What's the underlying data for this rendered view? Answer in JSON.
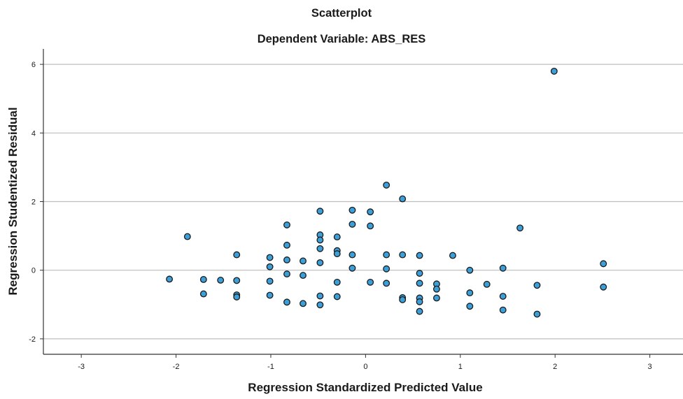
{
  "chart_data": {
    "type": "scatter",
    "title": "Scatterplot",
    "subtitle": "Dependent Variable: ABS_RES",
    "xlabel": "Regression Standardized Predicted Value",
    "ylabel": "Regression Studentized Residual",
    "xlim": [
      -3.4,
      3.35
    ],
    "ylim": [
      -2.45,
      6.45
    ],
    "xticks": [
      -3,
      -2,
      -1,
      0,
      1,
      2,
      3
    ],
    "yticks": [
      -2,
      0,
      2,
      4,
      6
    ],
    "grid": "horizontal",
    "colors": {
      "point_fill": "#3d9fd8",
      "point_stroke": "#1a1a1a",
      "grid": "#bdbdbd",
      "axis": "#333333",
      "text": "#1a1a1a"
    },
    "points": [
      {
        "x": 1.99,
        "y": 5.8
      },
      {
        "x": 0.22,
        "y": 2.48
      },
      {
        "x": 0.39,
        "y": 2.08
      },
      {
        "x": -0.48,
        "y": 1.72
      },
      {
        "x": -0.14,
        "y": 1.75
      },
      {
        "x": 0.05,
        "y": 1.7
      },
      {
        "x": -0.83,
        "y": 1.32
      },
      {
        "x": -0.14,
        "y": 1.34
      },
      {
        "x": 0.05,
        "y": 1.29
      },
      {
        "x": 1.63,
        "y": 1.23
      },
      {
        "x": -1.88,
        "y": 0.98
      },
      {
        "x": -0.48,
        "y": 1.03
      },
      {
        "x": -0.3,
        "y": 0.97
      },
      {
        "x": -0.48,
        "y": 0.88
      },
      {
        "x": -0.83,
        "y": 0.73
      },
      {
        "x": -0.48,
        "y": 0.63
      },
      {
        "x": -0.3,
        "y": 0.57
      },
      {
        "x": -0.3,
        "y": 0.48
      },
      {
        "x": -1.36,
        "y": 0.45
      },
      {
        "x": -0.14,
        "y": 0.45
      },
      {
        "x": 0.22,
        "y": 0.45
      },
      {
        "x": 0.39,
        "y": 0.45
      },
      {
        "x": 0.57,
        "y": 0.43
      },
      {
        "x": 0.92,
        "y": 0.43
      },
      {
        "x": -1.01,
        "y": 0.37
      },
      {
        "x": -0.83,
        "y": 0.3
      },
      {
        "x": -0.66,
        "y": 0.27
      },
      {
        "x": -0.48,
        "y": 0.22
      },
      {
        "x": 2.51,
        "y": 0.19
      },
      {
        "x": -1.01,
        "y": 0.1
      },
      {
        "x": -0.14,
        "y": 0.06
      },
      {
        "x": 0.22,
        "y": 0.04
      },
      {
        "x": 1.45,
        "y": 0.06
      },
      {
        "x": 1.1,
        "y": 0.0
      },
      {
        "x": -0.83,
        "y": -0.11
      },
      {
        "x": -0.66,
        "y": -0.15
      },
      {
        "x": 0.57,
        "y": -0.09
      },
      {
        "x": -2.07,
        "y": -0.26
      },
      {
        "x": -1.71,
        "y": -0.27
      },
      {
        "x": -1.53,
        "y": -0.29
      },
      {
        "x": -1.36,
        "y": -0.3
      },
      {
        "x": -1.01,
        "y": -0.32
      },
      {
        "x": -0.3,
        "y": -0.35
      },
      {
        "x": 0.05,
        "y": -0.35
      },
      {
        "x": 0.22,
        "y": -0.38
      },
      {
        "x": 0.57,
        "y": -0.38
      },
      {
        "x": 0.75,
        "y": -0.4
      },
      {
        "x": 1.28,
        "y": -0.41
      },
      {
        "x": 1.81,
        "y": -0.44
      },
      {
        "x": 2.51,
        "y": -0.49
      },
      {
        "x": 0.75,
        "y": -0.55
      },
      {
        "x": 1.1,
        "y": -0.66
      },
      {
        "x": -1.71,
        "y": -0.69
      },
      {
        "x": -1.36,
        "y": -0.72
      },
      {
        "x": -1.01,
        "y": -0.73
      },
      {
        "x": -0.48,
        "y": -0.75
      },
      {
        "x": -0.3,
        "y": -0.77
      },
      {
        "x": 1.45,
        "y": -0.76
      },
      {
        "x": -1.36,
        "y": -0.78
      },
      {
        "x": 0.39,
        "y": -0.8
      },
      {
        "x": 0.57,
        "y": -0.81
      },
      {
        "x": 0.75,
        "y": -0.81
      },
      {
        "x": 0.39,
        "y": -0.86
      },
      {
        "x": 0.57,
        "y": -0.92
      },
      {
        "x": -0.83,
        "y": -0.93
      },
      {
        "x": -0.66,
        "y": -0.97
      },
      {
        "x": -0.48,
        "y": -1.01
      },
      {
        "x": 1.1,
        "y": -1.05
      },
      {
        "x": 1.45,
        "y": -1.16
      },
      {
        "x": 0.57,
        "y": -1.2
      },
      {
        "x": 1.81,
        "y": -1.28
      }
    ]
  }
}
